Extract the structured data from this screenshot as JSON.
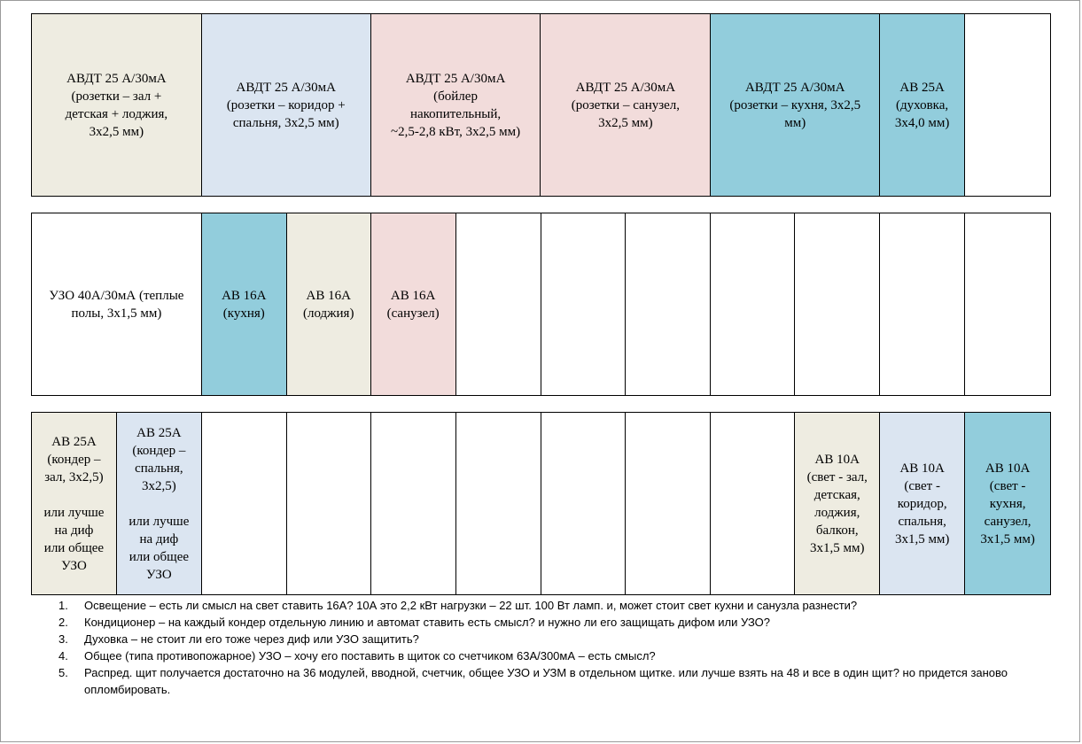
{
  "colors": {
    "beige": "#eeece1",
    "lavender": "#dbe5f1",
    "pink": "#f2dcdb",
    "cyan": "#92cddc",
    "white": "#ffffff"
  },
  "rows": [
    {
      "cells": [
        {
          "text": "АВДТ 25 А/30мА\n(розетки – зал +\nдетская + лоджия,\n3х2,5 мм)",
          "color": "#eeece1",
          "width": 192
        },
        {
          "text": "АВДТ 25 А/30мА\n(розетки – коридор +\nспальня, 3х2,5 мм)",
          "color": "#dbe5f1",
          "width": 191
        },
        {
          "text": "АВДТ 25 А/30мА\n(бойлер\nнакопительный,\n~2,5-2,8 кВт, 3х2,5 мм)",
          "color": "#f2dcdb",
          "width": 192
        },
        {
          "text": "АВДТ 25 А/30мА\n(розетки – санузел,\n3х2,5 мм)",
          "color": "#f2dcdb",
          "width": 192
        },
        {
          "text": "АВДТ 25 А/30мА\n(розетки – кухня, 3х2,5\nмм)",
          "color": "#92cddc",
          "width": 191
        },
        {
          "text": "АВ 25А\n(духовка,\n3х4,0 мм)",
          "color": "#92cddc",
          "width": 96
        },
        {
          "text": "",
          "color": "#ffffff",
          "width": 96
        }
      ]
    },
    {
      "cells": [
        {
          "text": "УЗО 40А/30мА (теплые\nполы, 3х1,5 мм)",
          "color": "#ffffff",
          "width": 192
        },
        {
          "text": "АВ 16А\n(кухня)",
          "color": "#92cddc",
          "width": 96
        },
        {
          "text": "АВ 16А\n(лоджия)",
          "color": "#eeece1",
          "width": 95
        },
        {
          "text": "АВ 16А\n(санузел)",
          "color": "#f2dcdb",
          "width": 96
        },
        {
          "text": "",
          "color": "#ffffff",
          "width": 96
        },
        {
          "text": "",
          "color": "#ffffff",
          "width": 96
        },
        {
          "text": "",
          "color": "#ffffff",
          "width": 96
        },
        {
          "text": "",
          "color": "#ffffff",
          "width": 95
        },
        {
          "text": "",
          "color": "#ffffff",
          "width": 96
        },
        {
          "text": "",
          "color": "#ffffff",
          "width": 96
        },
        {
          "text": "",
          "color": "#ffffff",
          "width": 96
        }
      ]
    },
    {
      "cells": [
        {
          "text": "АВ 25А\n(кондер –\nзал, 3х2,5)\n\nили лучше\nна диф\nили общее\nУЗО",
          "color": "#eeece1",
          "width": 96
        },
        {
          "text": "АВ 25А\n(кондер –\nспальня,\n3х2,5)\n\nили лучше\nна диф\nили общее\nУЗО",
          "color": "#dbe5f1",
          "width": 96
        },
        {
          "text": "",
          "color": "#ffffff",
          "width": 96
        },
        {
          "text": "",
          "color": "#ffffff",
          "width": 95
        },
        {
          "text": "",
          "color": "#ffffff",
          "width": 96
        },
        {
          "text": "",
          "color": "#ffffff",
          "width": 96
        },
        {
          "text": "",
          "color": "#ffffff",
          "width": 96
        },
        {
          "text": "",
          "color": "#ffffff",
          "width": 96
        },
        {
          "text": "",
          "color": "#ffffff",
          "width": 95
        },
        {
          "text": "АВ 10А\n(свет - зал,\nдетская,\nлоджия,\nбалкон,\n3х1,5 мм)",
          "color": "#eeece1",
          "width": 96
        },
        {
          "text": "АВ 10А\n(свет -\nкоридор,\nспальня,\n3х1,5 мм)",
          "color": "#dbe5f1",
          "width": 96
        },
        {
          "text": "АВ 10А\n(свет -\nкухня,\nсанузел,\n3х1,5 мм)",
          "color": "#92cddc",
          "width": 96
        }
      ]
    }
  ],
  "notes": [
    {
      "num": "1.",
      "text": "Освещение – есть ли смысл на свет ставить 16А? 10А это 2,2 кВт нагрузки – 22 шт. 100 Вт ламп. и, может стоит свет кухни и санузла разнести?"
    },
    {
      "num": "2.",
      "text": "Кондиционер – на каждый кондер отдельную линию и автомат ставить есть смысл? и нужно ли его защищать дифом или УЗО?"
    },
    {
      "num": "3.",
      "text": "Духовка – не стоит ли его тоже через диф или УЗО защитить?"
    },
    {
      "num": "4.",
      "text": "Общее (типа противопожарное) УЗО – хочу его поставить в щиток со счетчиком 63А/300мА – есть смысл?"
    },
    {
      "num": "5.",
      "text": "Распред. щит получается достаточно на 36 модулей, вводной, счетчик, общее УЗО и УЗМ в отдельном щитке. или лучше взять на 48 и все в один щит? но придется заново опломбировать."
    }
  ]
}
